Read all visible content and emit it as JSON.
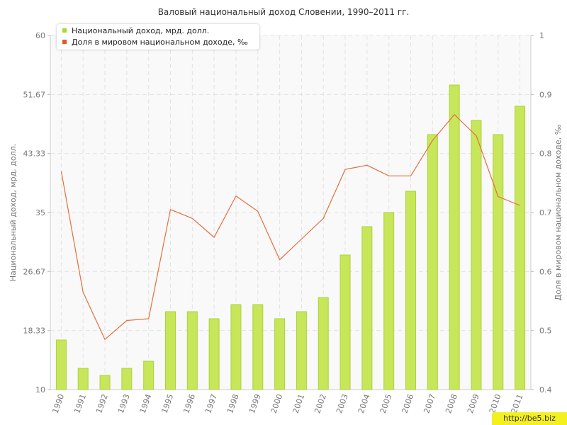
{
  "colors": {
    "bar_fill": "#c8e65a",
    "bar_edge": "#a9d43a",
    "line": "#e36f3c",
    "legend_bar_swatch": "#a8d832",
    "legend_line_swatch": "#e05a2a",
    "grid": "#e3e3e3",
    "plot_bg": "#f9f9f9",
    "axis_text": "#777777"
  },
  "watermark": "http://be5.biz",
  "chart_data": {
    "type": "bar",
    "title": "Валовый национальный доход Словении, 1990–2011 гг.",
    "categories": [
      "1990",
      "1991",
      "1992",
      "1993",
      "1994",
      "1995",
      "1996",
      "1997",
      "1998",
      "1999",
      "2000",
      "2001",
      "2002",
      "2003",
      "2004",
      "2005",
      "2006",
      "2007",
      "2008",
      "2009",
      "2010",
      "2011"
    ],
    "y_left": {
      "label": "Национальный доход, мрд. долл.",
      "range": [
        10,
        60
      ],
      "ticks": [
        "10",
        "18.33",
        "26.67",
        "35",
        "43.33",
        "51.67",
        "60"
      ]
    },
    "y_right": {
      "label": "Доля в мировом национальном доходе, ‰",
      "range": [
        0.4,
        1.0
      ],
      "ticks": [
        "0.4",
        "0.5",
        "0.6",
        "0.7",
        "0.8",
        "0.9",
        "1"
      ]
    },
    "grid": true,
    "legend_position": "top-left",
    "series": [
      {
        "name": "Национальный доход, мрд. долл.",
        "type": "bar",
        "axis": "left",
        "values": [
          17.0,
          13.0,
          12.0,
          13.0,
          14.0,
          21.0,
          21.0,
          20.0,
          22.0,
          22.0,
          20.0,
          21.0,
          23.0,
          29.0,
          33.0,
          35.0,
          38.0,
          46.0,
          53.0,
          48.0,
          46.0,
          50.0
        ]
      },
      {
        "name": "Доля в мировом национальном доходе, ‰",
        "type": "line",
        "axis": "right",
        "values": [
          0.77,
          0.565,
          0.485,
          0.517,
          0.52,
          0.705,
          0.69,
          0.658,
          0.728,
          0.702,
          0.62,
          0.655,
          0.69,
          0.773,
          0.78,
          0.762,
          0.762,
          0.822,
          0.866,
          0.83,
          0.727,
          0.712
        ]
      }
    ]
  }
}
